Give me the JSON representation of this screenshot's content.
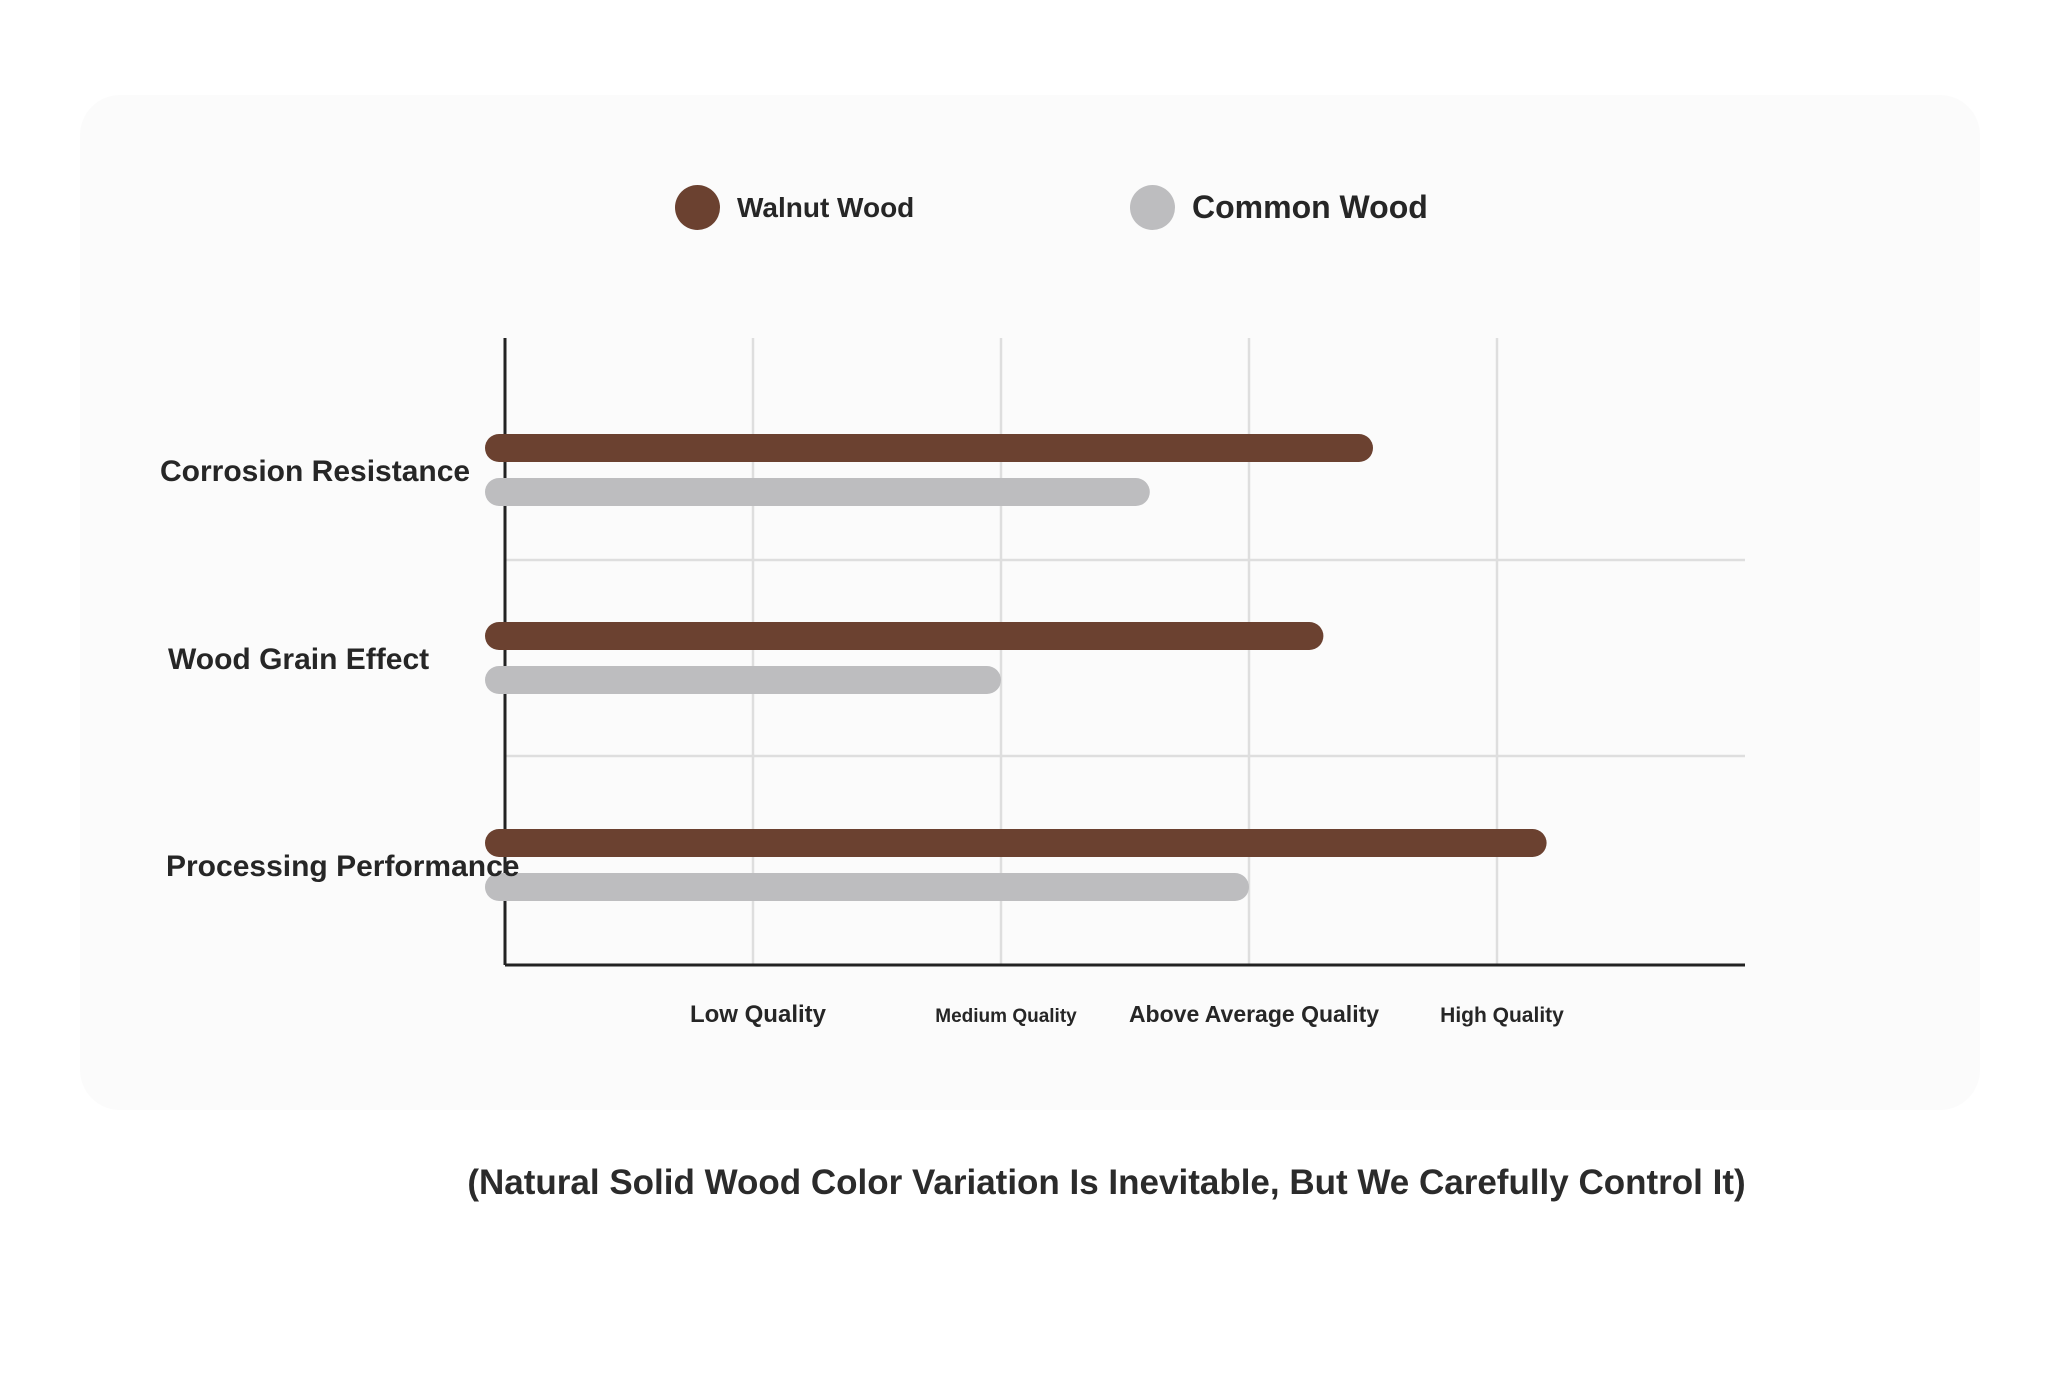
{
  "colors": {
    "walnut": "#6b4130",
    "common": "#bdbdbf",
    "grid": "#dedede",
    "axis": "#222222"
  },
  "legend": [
    {
      "label": "Walnut Wood",
      "color": "#6b4130"
    },
    {
      "label": "Common Wood",
      "color": "#bdbdbf"
    }
  ],
  "caption": "(Natural Solid Wood Color Variation Is Inevitable, But We Carefully Control It)",
  "chart_data": {
    "type": "bar",
    "orientation": "horizontal",
    "categories": [
      "Corrosion Resistance",
      "Wood Grain Effect",
      "Processing Performance"
    ],
    "x_ticks": [
      "Low Quality",
      "Medium Quality",
      "Above Average Quality",
      "High Quality"
    ],
    "xlim": [
      0,
      5
    ],
    "series": [
      {
        "name": "Walnut Wood",
        "values": [
          3.5,
          3.3,
          4.2
        ]
      },
      {
        "name": "Common Wood",
        "values": [
          2.6,
          2.0,
          3.0
        ]
      }
    ],
    "grid": true,
    "legend_position": "top"
  }
}
